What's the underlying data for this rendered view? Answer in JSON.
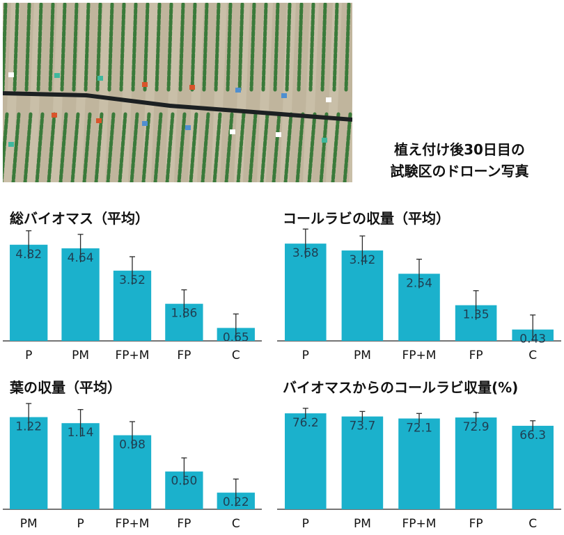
{
  "photo": {
    "icon": "drone-field-photo",
    "caption_lines": [
      "植え付け後30日目の",
      "試験区のドローン写真"
    ]
  },
  "colors": {
    "bar": "#1bb1cc",
    "bar_text": "#1f3e52",
    "error_bar": "#2b2b2b",
    "axis": "#222222",
    "soil": "#c9bfa8",
    "plant": "#3a7a3a",
    "pipe": "#1c2022"
  },
  "chart_data": [
    {
      "type": "bar",
      "title": "総バイオマス（平均）",
      "categories": [
        "P",
        "PM",
        "FP+M",
        "FP",
        "C"
      ],
      "values": [
        4.82,
        4.64,
        3.52,
        1.86,
        0.65
      ],
      "errors": [
        0.7,
        0.7,
        0.7,
        0.7,
        0.7
      ],
      "value_labels": [
        "4.82",
        "4.64",
        "3.52",
        "1.86",
        "0.65"
      ],
      "ylim": [
        0,
        5.3
      ],
      "xlabel": "",
      "ylabel": ""
    },
    {
      "type": "bar",
      "title": "コールラビの収量（平均）",
      "categories": [
        "P",
        "PM",
        "FP+M",
        "FP",
        "C"
      ],
      "values": [
        3.68,
        3.42,
        2.54,
        1.35,
        0.43
      ],
      "errors": [
        0.55,
        0.55,
        0.55,
        0.55,
        0.55
      ],
      "value_labels": [
        "3.68",
        "3.42",
        "2.54",
        "1.35",
        "0.43"
      ],
      "ylim": [
        0,
        4.0
      ],
      "xlabel": "",
      "ylabel": ""
    },
    {
      "type": "bar",
      "title": "葉の収量（平均）",
      "categories": [
        "PM",
        "P",
        "FP+M",
        "FP",
        "C"
      ],
      "values": [
        1.22,
        1.14,
        0.98,
        0.5,
        0.22
      ],
      "errors": [
        0.18,
        0.18,
        0.18,
        0.18,
        0.18
      ],
      "value_labels": [
        "1.22",
        "1.14",
        "0.98",
        "0.50",
        "0.22"
      ],
      "ylim": [
        0,
        1.4
      ],
      "xlabel": "",
      "ylabel": ""
    },
    {
      "type": "bar",
      "title": "バイオマスからのコールラビ収量(%)",
      "categories": [
        "P",
        "PM",
        "FP+M",
        "FP",
        "C"
      ],
      "values": [
        76.2,
        73.7,
        72.1,
        72.9,
        66.3
      ],
      "errors": [
        4,
        4,
        4,
        4,
        4
      ],
      "value_labels": [
        "76.2",
        "73.7",
        "72.1",
        "72.9",
        "66.3"
      ],
      "ylim": [
        0,
        84
      ],
      "xlabel": "",
      "ylabel": ""
    }
  ]
}
